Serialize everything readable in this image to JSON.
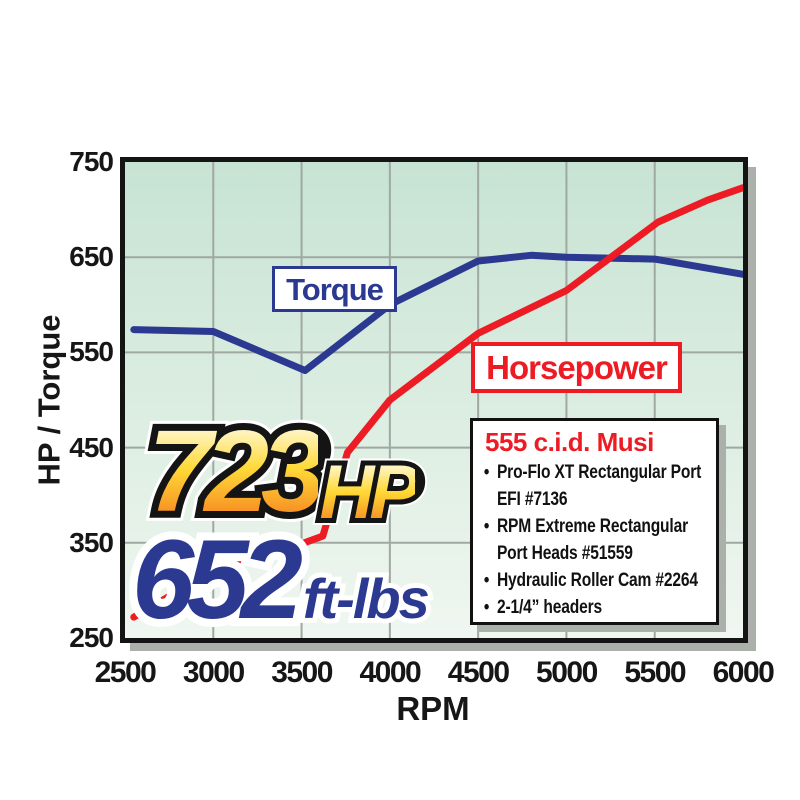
{
  "axis": {
    "x_label": "RPM",
    "y_label": "HP / Torque"
  },
  "curve_labels": {
    "torque": "Torque",
    "horsepower": "Horsepower"
  },
  "callouts": {
    "hp_number": "723",
    "hp_suffix": "HP",
    "torque_number": "652",
    "torque_suffix": "ft-lbs"
  },
  "spec_box": {
    "title": "555 c.i.d. Musi",
    "bullets": [
      "Pro-Flo XT Rectangular Port\nEFI #7136",
      "RPM Extreme Rectangular\nPort Heads #51559",
      "Hydraulic Roller Cam #2264",
      "2-1/4” headers"
    ]
  },
  "chart_data": {
    "type": "line",
    "title": "",
    "xlabel": "RPM",
    "ylabel": "HP / Torque",
    "xlim": [
      2500,
      6000
    ],
    "ylim": [
      250,
      750
    ],
    "x_ticks": [
      2500,
      3000,
      3500,
      4000,
      4500,
      5000,
      5500,
      6000
    ],
    "y_ticks": [
      750,
      650,
      550,
      450,
      350,
      250
    ],
    "grid": true,
    "legend_position": "inline-boxed-labels",
    "peak_horsepower": 723,
    "peak_torque": 652,
    "series": [
      {
        "name": "Torque",
        "unit": "ft-lbs",
        "color": "#2b3990",
        "points": [
          [
            2550,
            574
          ],
          [
            3000,
            572
          ],
          [
            3520,
            531
          ],
          [
            4000,
            600
          ],
          [
            4500,
            646
          ],
          [
            4800,
            652
          ],
          [
            5000,
            650
          ],
          [
            5500,
            648
          ],
          [
            6000,
            632
          ]
        ]
      },
      {
        "name": "Horsepower",
        "unit": "HP",
        "color": "#ed1c24",
        "points": [
          [
            2550,
            272
          ],
          [
            3000,
            321
          ],
          [
            3500,
            349
          ],
          [
            3620,
            357
          ],
          [
            3760,
            445
          ],
          [
            4000,
            500
          ],
          [
            4500,
            570
          ],
          [
            5000,
            615
          ],
          [
            5520,
            687
          ],
          [
            5800,
            710
          ],
          [
            6000,
            723
          ]
        ]
      }
    ]
  },
  "colors": {
    "torque_blue": "#2b3990",
    "horsepower_red": "#ed1c24",
    "plot_bg_top": "#c7e3d4",
    "plot_bg_bottom": "#f0f7f0",
    "grid_gray": "#9fa8a2",
    "border_black": "#141414",
    "shadow_gray": "#abb0ab",
    "hp_gradient_top": "#fffbe0",
    "hp_gradient_mid": "#ffd937",
    "hp_gradient_bottom": "#f58220"
  }
}
